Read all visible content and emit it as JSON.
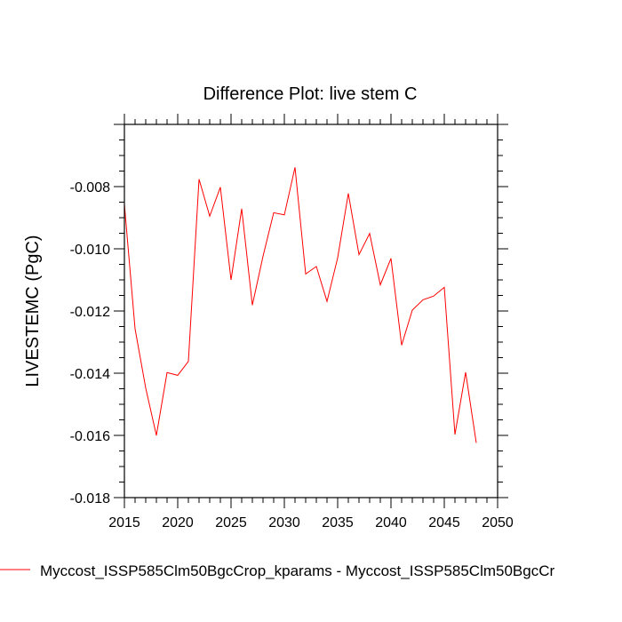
{
  "chart_data": {
    "type": "line",
    "title": "Difference Plot: live stem C",
    "xlabel": "",
    "ylabel": "LIVESTEMC  (PgC)",
    "xlim": [
      2015,
      2050
    ],
    "ylim": [
      -0.018,
      -0.006
    ],
    "x_ticks": [
      2015,
      2020,
      2025,
      2030,
      2035,
      2040,
      2045,
      2050
    ],
    "x_tick_labels": [
      "2015",
      "2020",
      "2025",
      "2030",
      "2035",
      "2040",
      "2045",
      "2050"
    ],
    "y_ticks": [
      -0.018,
      -0.016,
      -0.014,
      -0.012,
      -0.01,
      -0.008
    ],
    "y_tick_labels": [
      "-0.018",
      "-0.016",
      "-0.014",
      "-0.012",
      "-0.010",
      "-0.008"
    ],
    "grid": false,
    "legend_placement": "bottom",
    "series": [
      {
        "name": "Myccost_ISSP585Clm50BgcCrop_kparams - Myccost_ISSP585Clm50BgcCr",
        "color": "#ff0000",
        "x": [
          2015,
          2016,
          2017,
          2018,
          2019,
          2020,
          2021,
          2022,
          2023,
          2024,
          2025,
          2026,
          2027,
          2028,
          2029,
          2030,
          2031,
          2032,
          2033,
          2034,
          2035,
          2036,
          2037,
          2038,
          2039,
          2040,
          2041,
          2042,
          2043,
          2044,
          2045,
          2046,
          2047,
          2048
        ],
        "values": [
          -0.00857,
          -0.01257,
          -0.01448,
          -0.016,
          -0.01398,
          -0.01407,
          -0.01362,
          -0.00776,
          -0.00895,
          -0.00802,
          -0.011,
          -0.00871,
          -0.01181,
          -0.01024,
          -0.00884,
          -0.00891,
          -0.00738,
          -0.01081,
          -0.01057,
          -0.01169,
          -0.01029,
          -0.00822,
          -0.01019,
          -0.00951,
          -0.01116,
          -0.01031,
          -0.0131,
          -0.01197,
          -0.01164,
          -0.01152,
          -0.01124,
          -0.01597,
          -0.01397,
          -0.01624
        ]
      }
    ]
  }
}
